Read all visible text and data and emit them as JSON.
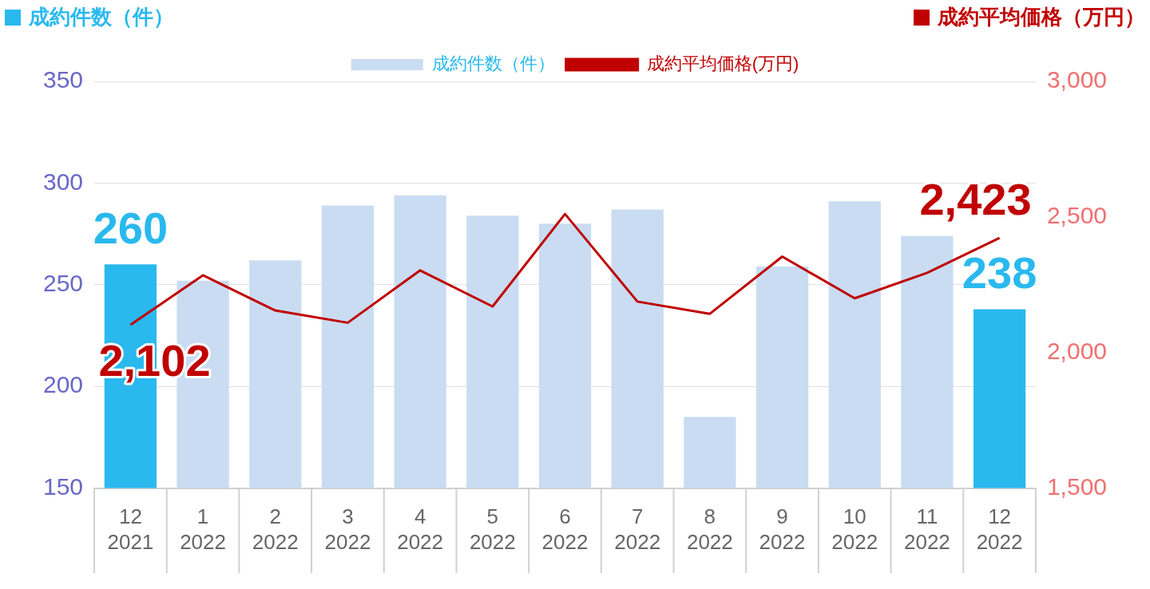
{
  "chart_data": {
    "type": "bar",
    "ylabel": "成約件数（件）",
    "y2label": "成約平均価格（万円）",
    "categories": [
      "12\n2021",
      "1\n2022",
      "2\n2022",
      "3\n2022",
      "4\n2022",
      "5\n2022",
      "6\n2022",
      "7\n2022",
      "8\n2022",
      "9\n2022",
      "10\n2022",
      "11\n2022",
      "12\n2022"
    ],
    "series": [
      {
        "name": "成約件数（件）",
        "color": "#c9dcf2",
        "colors": [
          "#29b9ee",
          "#c9dcf2",
          "#c9dcf2",
          "#c9dcf2",
          "#c9dcf2",
          "#c9dcf2",
          "#c9dcf2",
          "#c9dcf2",
          "#c9dcf2",
          "#c9dcf2",
          "#c9dcf2",
          "#c9dcf2",
          "#29b9ee"
        ],
        "values": [
          260,
          252,
          262,
          289,
          294,
          284,
          280,
          287,
          185,
          259,
          291,
          274,
          238
        ],
        "value_labels": [
          "260",
          null,
          null,
          null,
          null,
          null,
          null,
          null,
          null,
          null,
          null,
          null,
          "238"
        ]
      },
      {
        "name": "成約平均価格(万円)",
        "type": "line",
        "axis": "y2",
        "color": "#c00000",
        "values": [
          2102,
          2285,
          2155,
          2110,
          2303,
          2170,
          2511,
          2188,
          2143,
          2354,
          2200,
          2294,
          2423
        ],
        "value_labels": [
          "2,102",
          null,
          null,
          null,
          null,
          null,
          null,
          null,
          null,
          null,
          null,
          null,
          "2,423"
        ]
      }
    ],
    "ylim": [
      150,
      350
    ],
    "yticks": [
      150,
      200,
      250,
      300,
      350
    ],
    "y2lim": [
      1500,
      3000
    ],
    "y2ticks": [
      {
        "value": 1500,
        "label": "1,500"
      },
      {
        "value": 2000,
        "label": "2,000"
      },
      {
        "value": 2500,
        "label": "2,500"
      },
      {
        "value": 3000,
        "label": "3,000"
      }
    ],
    "grid": "y",
    "legend": "top",
    "marker": "none",
    "line_style": "solid"
  }
}
